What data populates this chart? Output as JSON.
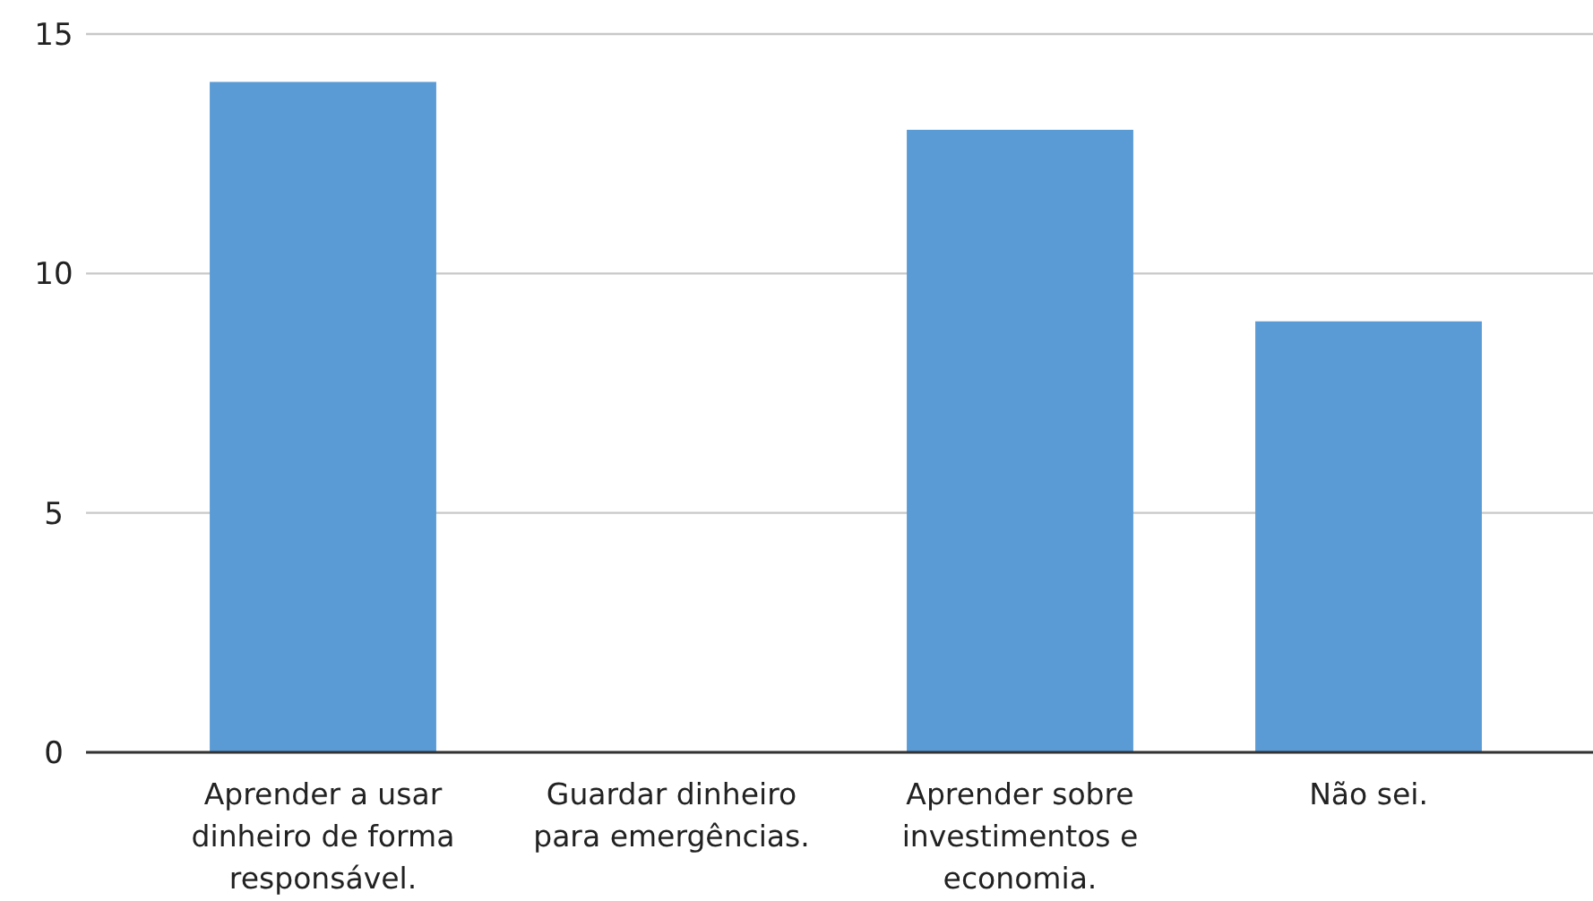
{
  "chart_data": {
    "type": "bar",
    "categories": [
      "Aprender a usar dinheiro de forma responsável.",
      "Guardar dinheiro para emergências.",
      "Aprender sobre investimentos e economia.",
      "Não sei."
    ],
    "values": [
      14,
      0,
      13,
      9
    ],
    "color": "#5b9bd5",
    "ylim": [
      0,
      15
    ],
    "yticks": [
      0,
      5,
      10,
      15
    ],
    "grid": "y"
  }
}
